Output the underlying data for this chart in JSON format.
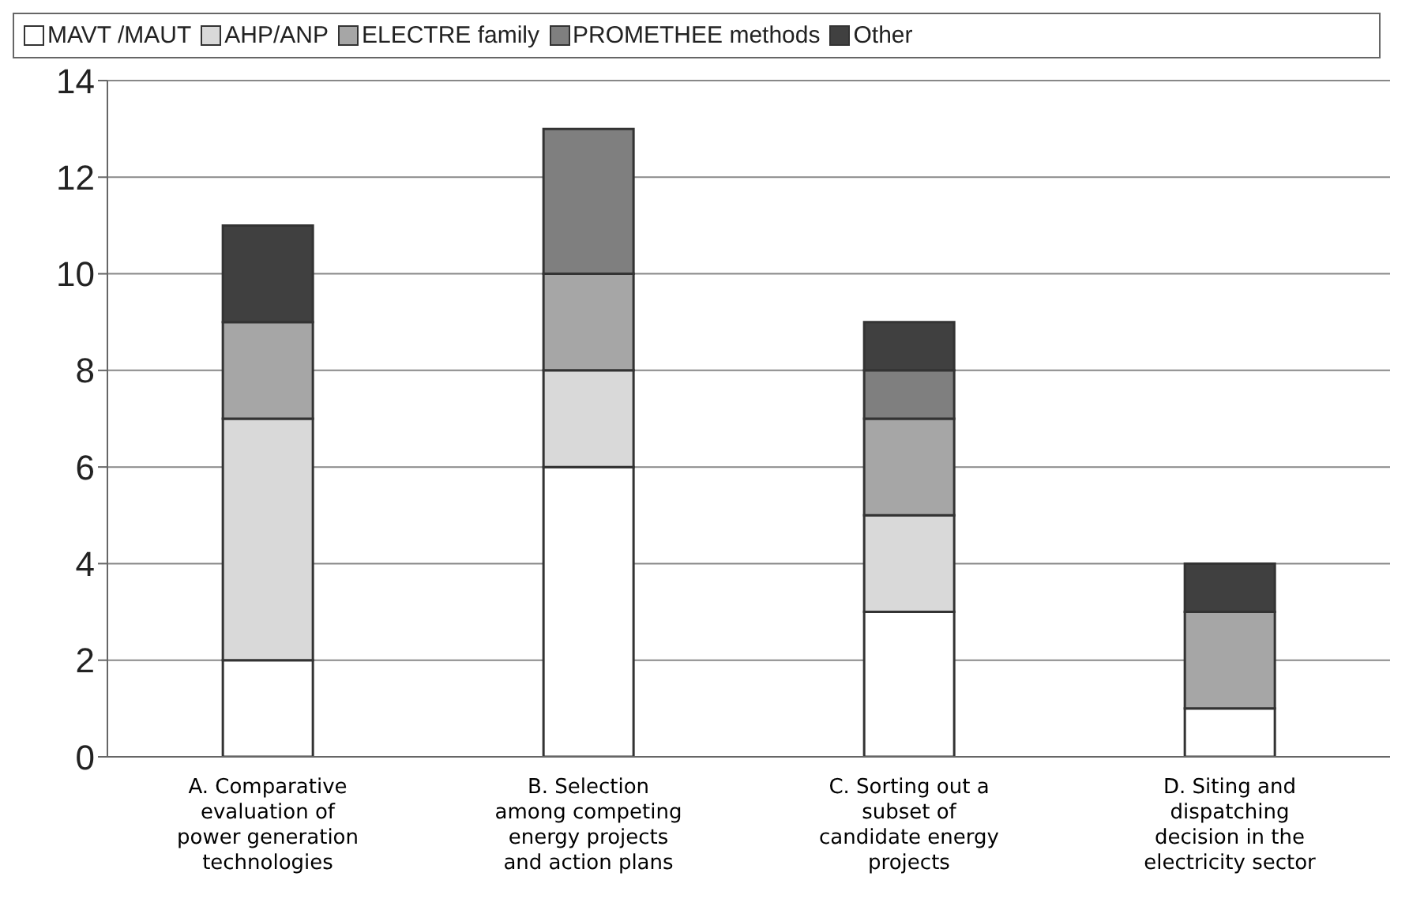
{
  "chart_data": {
    "type": "bar",
    "stacked": true,
    "categories": [
      "A. Comparative evaluation of power generation technologies",
      "B. Selection among competing energy projects and action plans",
      "C. Sorting out a subset of candidate energy projects",
      "D. Siting and dispatching decision in the electricity sector"
    ],
    "series": [
      {
        "name": "MAVT /MAUT",
        "color": "#ffffff",
        "values": [
          2,
          6,
          3,
          1
        ]
      },
      {
        "name": "AHP/ANP",
        "color": "#d9d9d9",
        "values": [
          5,
          2,
          2,
          0
        ]
      },
      {
        "name": "ELECTRE family",
        "color": "#a6a6a6",
        "values": [
          2,
          2,
          2,
          2
        ]
      },
      {
        "name": "PROMETHEE methods",
        "color": "#7f7f7f",
        "values": [
          0,
          3,
          1,
          0
        ]
      },
      {
        "name": "Other",
        "color": "#404040",
        "values": [
          2,
          0,
          1,
          1
        ]
      }
    ],
    "ylim": [
      0,
      14
    ],
    "yticks": [
      0,
      2,
      4,
      6,
      8,
      10,
      12,
      14
    ],
    "grid": "y",
    "legend": "top"
  }
}
